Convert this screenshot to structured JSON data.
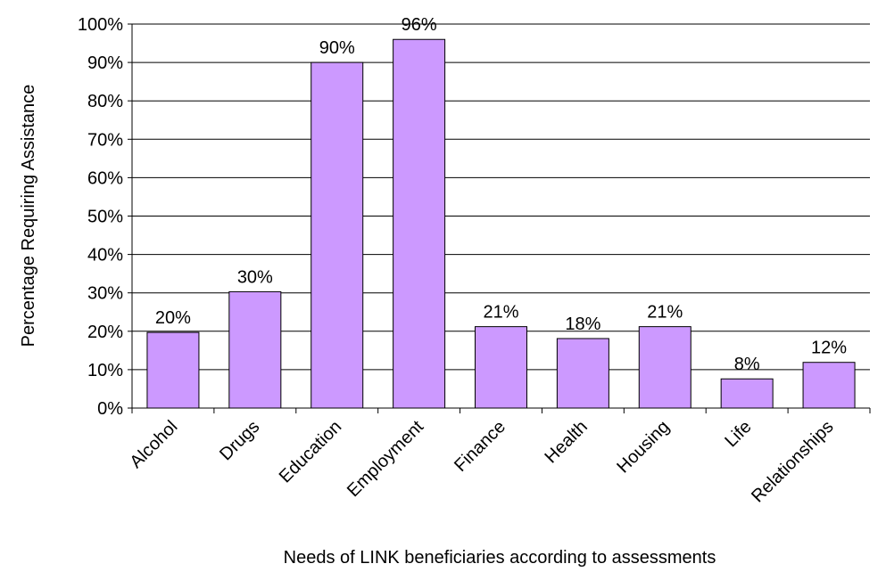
{
  "chart_data": {
    "type": "bar",
    "x_label": "Needs of LINK beneficiaries according to assessments",
    "y_label": "Percentage Requiring Assistance",
    "categories": [
      "Alcohol",
      "Drugs",
      "Education",
      "Employment",
      "Finance",
      "Health",
      "Housing",
      "Life",
      "Relationships"
    ],
    "values": [
      19.7,
      30.3,
      90,
      96,
      21.2,
      18.1,
      21.2,
      7.6,
      11.9
    ],
    "value_labels": [
      "20%",
      "30%",
      "90%",
      "96%",
      "21%",
      "18%",
      "21%",
      "8%",
      "12%"
    ],
    "color": "#cc99ff",
    "ylim": [
      0,
      100
    ],
    "yticks": [
      {
        "value": 0,
        "label": "0%"
      },
      {
        "value": 10,
        "label": "10%"
      },
      {
        "value": 20,
        "label": "20%"
      },
      {
        "value": 30,
        "label": "30%"
      },
      {
        "value": 40,
        "label": "40%"
      },
      {
        "value": 50,
        "label": "50%"
      },
      {
        "value": 60,
        "label": "60%"
      },
      {
        "value": 70,
        "label": "70%"
      },
      {
        "value": 80,
        "label": "80%"
      },
      {
        "value": 90,
        "label": "90%"
      },
      {
        "value": 100,
        "label": "100%"
      }
    ],
    "grid": true
  }
}
